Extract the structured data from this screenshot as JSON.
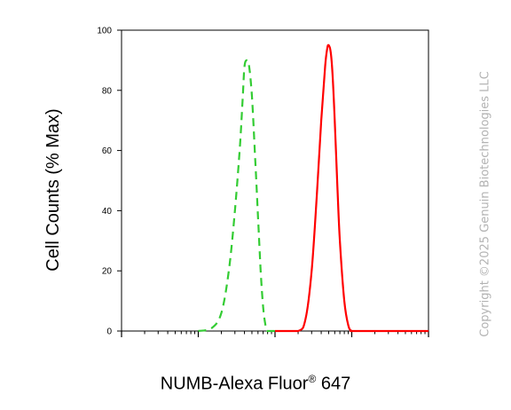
{
  "chart_data": {
    "type": "line",
    "title": "",
    "xlabel_main": "NUMB-Alexa Fluor",
    "xlabel_sup": "®",
    "xlabel_tail": " 647",
    "ylabel": "Cell Counts (% Max)",
    "xscale": "log",
    "xlim": [
      1,
      10000
    ],
    "ylim": [
      0,
      100
    ],
    "yticks": [
      0,
      20,
      40,
      60,
      80,
      100
    ],
    "grid": false,
    "series": [
      {
        "color": "#33cc33",
        "style": "dashed",
        "x": [
          10,
          15,
          20,
          25,
          30,
          35,
          38,
          40,
          43,
          46,
          50,
          55,
          60,
          65,
          70,
          75,
          80,
          100
        ],
        "y": [
          0,
          1,
          6,
          20,
          40,
          62,
          78,
          88,
          90,
          88,
          78,
          58,
          38,
          20,
          8,
          2,
          0,
          0
        ]
      },
      {
        "color": "#ff0000",
        "style": "solid",
        "x": [
          100,
          200,
          250,
          300,
          350,
          400,
          450,
          480,
          500,
          530,
          560,
          600,
          650,
          700,
          800,
          900,
          1000,
          1200,
          10000
        ],
        "y": [
          0,
          0,
          4,
          20,
          45,
          70,
          88,
          94,
          95,
          93,
          86,
          70,
          48,
          30,
          10,
          2,
          0,
          0,
          0
        ]
      }
    ]
  },
  "copyright": "Copyright ©2025 Genuin Biotechnologies LLC"
}
